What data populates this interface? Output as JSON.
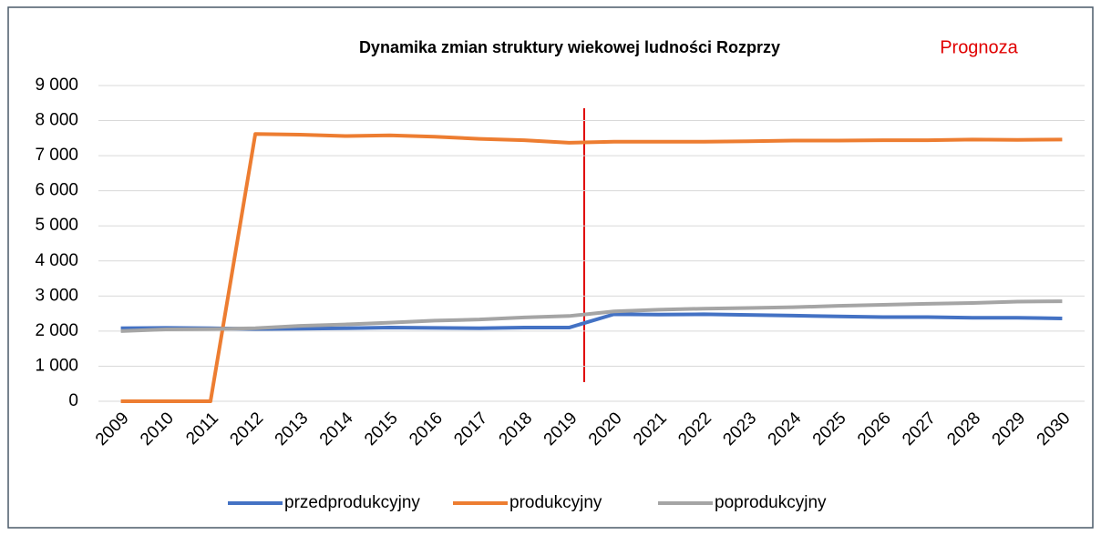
{
  "chart_data": {
    "type": "line",
    "title": "Dynamika zmian struktury wiekowej ludności Rozprzy",
    "annotation": "Prognoza",
    "categories": [
      "2009",
      "2010",
      "2011",
      "2012",
      "2013",
      "2014",
      "2015",
      "2016",
      "2017",
      "2018",
      "2019",
      "2020",
      "2021",
      "2022",
      "2023",
      "2024",
      "2025",
      "2026",
      "2027",
      "2028",
      "2029",
      "2030"
    ],
    "series": [
      {
        "name": "przedprodukcyjny",
        "color": "#4472c4",
        "values": [
          2080,
          2090,
          2080,
          2060,
          2070,
          2080,
          2100,
          2090,
          2080,
          2100,
          2100,
          2480,
          2470,
          2480,
          2460,
          2440,
          2420,
          2400,
          2400,
          2380,
          2380,
          2360
        ]
      },
      {
        "name": "produkcyjny",
        "color": "#ed7d31",
        "values": [
          0,
          0,
          0,
          7620,
          7600,
          7560,
          7580,
          7540,
          7480,
          7440,
          7370,
          7400,
          7400,
          7400,
          7410,
          7430,
          7430,
          7440,
          7440,
          7460,
          7450,
          7460
        ]
      },
      {
        "name": "poprodukcyjny",
        "color": "#a5a5a5",
        "values": [
          2000,
          2050,
          2060,
          2080,
          2150,
          2190,
          2240,
          2300,
          2330,
          2390,
          2430,
          2560,
          2610,
          2640,
          2660,
          2680,
          2720,
          2750,
          2780,
          2800,
          2840,
          2850
        ]
      }
    ],
    "ylim": [
      0,
      9000
    ],
    "yticks": [
      0,
      {
        "value": 1000,
        "label": "1 000"
      },
      {
        "value": 2000,
        "label": "2 000"
      },
      {
        "value": 3000,
        "label": "3 000"
      },
      {
        "value": 4000,
        "label": "4 000"
      },
      {
        "value": 5000,
        "label": "5 000"
      },
      {
        "value": 6000,
        "label": "6 000"
      },
      {
        "value": 7000,
        "label": "7 000"
      },
      {
        "value": 8000,
        "label": "8 000"
      },
      {
        "value": 9000,
        "label": "9 000"
      }
    ],
    "grid": true,
    "legend": "bottom"
  }
}
